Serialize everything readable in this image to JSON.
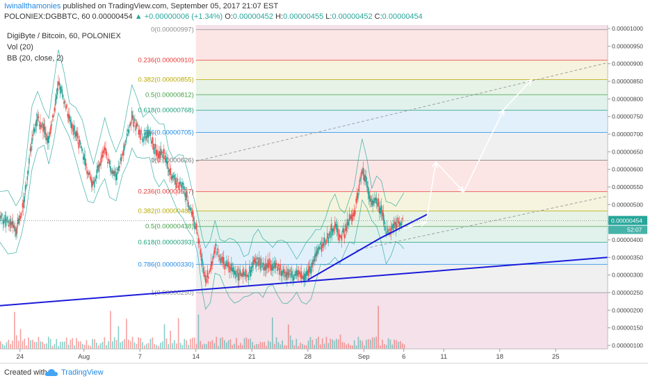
{
  "header": {
    "author": "Iwinallthamonies",
    "published": "published on TradingView.com, September 05, 2017 21:07 EST",
    "symbol": "POLONIEX:DGBBTC, 60",
    "last": "0.00000454",
    "change": "+0.00000006 (+1.34%)",
    "o_label": "O:",
    "o": "0.00000452",
    "h_label": "H:",
    "h": "0.00000455",
    "l_label": "L:",
    "l": "0.00000452",
    "c_label": "C:",
    "c": "0.00000454"
  },
  "legend": {
    "title": "DigiByte / Bitcoin, 60, POLONIEX",
    "vol": "Vol (20)",
    "bb": "BB (20, close, 2)"
  },
  "footer": {
    "created": "Created with",
    "brand": "TradingView"
  },
  "colors": {
    "background": "#ffffff",
    "candle_up": "#26a69a",
    "candle_down": "#ef5350",
    "trendline": "#1a1adb",
    "axis_text": "#444444"
  },
  "chart_data": {
    "type": "candlestick",
    "y_axis_ticks": [
      "0.00001000",
      "0.00000950",
      "0.00000900",
      "0.00000850",
      "0.00000800",
      "0.00000750",
      "0.00000700",
      "0.00000650",
      "0.00000600",
      "0.00000550",
      "0.00000500",
      "0.00000450",
      "0.00000400",
      "0.00000350",
      "0.00000300",
      "0.00000250",
      "0.00000200",
      "0.00000150",
      "0.00000100"
    ],
    "y_axis_values": [
      1000,
      950,
      900,
      850,
      800,
      750,
      700,
      650,
      600,
      550,
      500,
      450,
      400,
      350,
      300,
      250,
      200,
      150,
      100
    ],
    "ylim": [
      90,
      1010
    ],
    "x_axis_ticks": [
      "24",
      "Aug",
      "7",
      "14",
      "21",
      "28",
      "Sep",
      "6",
      "11",
      "18",
      "25"
    ],
    "x_axis_days": [
      0,
      8,
      15,
      22,
      29,
      36,
      43,
      48,
      53,
      60,
      67
    ],
    "xlim": [
      -2.5,
      73.5
    ],
    "last_price_label": "0.00000454",
    "last_price": 454,
    "countdown": "52:07",
    "fib_upper": {
      "levels": [
        {
          "label": "0(0.00000997)",
          "value": 997,
          "color": "#8c8c8c"
        },
        {
          "label": "0.236(0.00000910)",
          "value": 910,
          "color": "#e53935"
        },
        {
          "label": "0.382(0.00000855)",
          "value": 855,
          "color": "#b7a800"
        },
        {
          "label": "0.5(0.00000812)",
          "value": 812,
          "color": "#43a047"
        },
        {
          "label": "0.618(0.00000768)",
          "value": 768,
          "color": "#1b9e77"
        },
        {
          "label": "0.786(0.00000705)",
          "value": 705,
          "color": "#1e88e5"
        },
        {
          "label": "1(0.00000626)",
          "value": 626,
          "color": "#8c8c8c"
        }
      ],
      "start_day": 22
    },
    "fib_lower": {
      "levels": [
        {
          "label": "0(0.00000626)",
          "value": 626,
          "color": "#8c8c8c"
        },
        {
          "label": "0.236(0.00000537)",
          "value": 537,
          "color": "#e53935"
        },
        {
          "label": "0.382(0.00000482)",
          "value": 482,
          "color": "#b7a800"
        },
        {
          "label": "0.5(0.00000438)",
          "value": 438,
          "color": "#43a047"
        },
        {
          "label": "0.618(0.00000393)",
          "value": 393,
          "color": "#1b9e77"
        },
        {
          "label": "0.786(0.00000330)",
          "value": 330,
          "color": "#1e88e5"
        },
        {
          "label": "1(0.00000250)",
          "value": 250,
          "color": "#8c8c8c"
        }
      ],
      "start_day": 22
    },
    "trendlines": [
      {
        "from": [
          -2.5,
          213
        ],
        "to": [
          73.5,
          350
        ]
      },
      {
        "from": [
          36,
          286
        ],
        "to": [
          45,
          404
        ]
      },
      {
        "from": [
          45,
          404
        ],
        "to": [
          51,
          473
        ]
      }
    ],
    "dashed_channel": [
      {
        "from": [
          22,
          623
        ],
        "to": [
          73.5,
          903
        ]
      },
      {
        "from": [
          42,
          370
        ],
        "to": [
          73.5,
          524
        ]
      }
    ],
    "projection_path": [
      [
        48,
        433
      ],
      [
        50.8,
        450
      ],
      [
        52,
        621
      ],
      [
        55.5,
        536
      ],
      [
        60.5,
        770
      ],
      [
        64,
        855
      ]
    ],
    "price_path": [
      [
        -2.5,
        465
      ],
      [
        -1.5,
        450
      ],
      [
        -0.5,
        430
      ],
      [
        0.2,
        470
      ],
      [
        0.8,
        560
      ],
      [
        1.5,
        690
      ],
      [
        2.2,
        740
      ],
      [
        3,
        720
      ],
      [
        3.6,
        680
      ],
      [
        4.2,
        760
      ],
      [
        4.8,
        850
      ],
      [
        5.5,
        800
      ],
      [
        6.2,
        740
      ],
      [
        7,
        700
      ],
      [
        7.8,
        650
      ],
      [
        8.5,
        590
      ],
      [
        9.2,
        560
      ],
      [
        10,
        620
      ],
      [
        10.6,
        660
      ],
      [
        11.2,
        610
      ],
      [
        12,
        580
      ],
      [
        12.8,
        640
      ],
      [
        13.5,
        700
      ],
      [
        14,
        750
      ],
      [
        14.6,
        720
      ],
      [
        15.4,
        690
      ],
      [
        16.2,
        700
      ],
      [
        16.8,
        660
      ],
      [
        17.4,
        640
      ],
      [
        18,
        650
      ],
      [
        18.6,
        600
      ],
      [
        19.2,
        570
      ],
      [
        19.8,
        560
      ],
      [
        20.4,
        550
      ],
      [
        21,
        510
      ],
      [
        21.6,
        470
      ],
      [
        22.2,
        420
      ],
      [
        22.8,
        330
      ],
      [
        23.2,
        290
      ],
      [
        23.8,
        310
      ],
      [
        24.4,
        380
      ],
      [
        25,
        350
      ],
      [
        25.6,
        330
      ],
      [
        26.2,
        320
      ],
      [
        26.8,
        310
      ],
      [
        27.4,
        305
      ],
      [
        28,
        295
      ],
      [
        28.6,
        300
      ],
      [
        29.2,
        330
      ],
      [
        29.8,
        340
      ],
      [
        30.4,
        320
      ],
      [
        31,
        330
      ],
      [
        31.6,
        325
      ],
      [
        32.2,
        320
      ],
      [
        32.8,
        310
      ],
      [
        33.4,
        305
      ],
      [
        34,
        300
      ],
      [
        34.6,
        298
      ],
      [
        35.2,
        295
      ],
      [
        35.8,
        305
      ],
      [
        36.4,
        320
      ],
      [
        37,
        355
      ],
      [
        37.6,
        380
      ],
      [
        38.2,
        395
      ],
      [
        38.8,
        420
      ],
      [
        39.4,
        440
      ],
      [
        40,
        410
      ],
      [
        40.6,
        420
      ],
      [
        41.2,
        455
      ],
      [
        41.8,
        470
      ],
      [
        42.4,
        550
      ],
      [
        42.8,
        600
      ],
      [
        43.4,
        560
      ],
      [
        44,
        500
      ],
      [
        44.6,
        510
      ],
      [
        45.2,
        480
      ],
      [
        45.8,
        420
      ],
      [
        46.4,
        430
      ],
      [
        47,
        445
      ],
      [
        47.6,
        452
      ],
      [
        48,
        454
      ]
    ],
    "volume_max": 100
  }
}
